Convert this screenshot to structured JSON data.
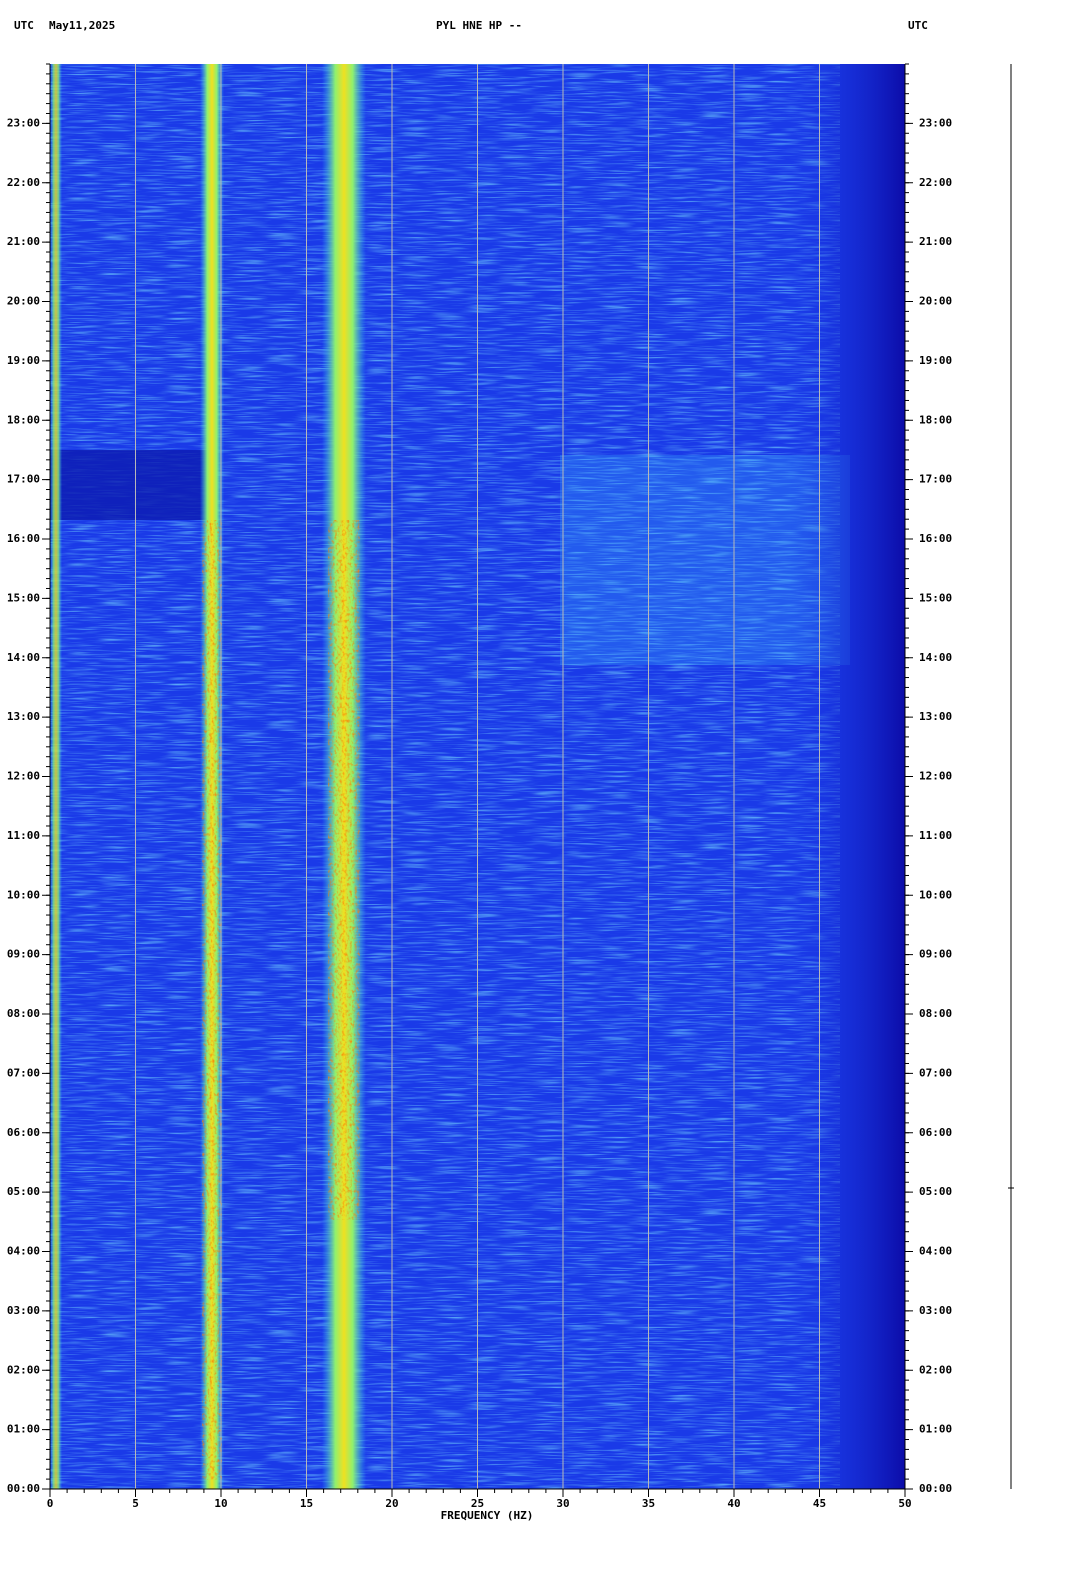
{
  "chart_data": {
    "type": "spectrogram",
    "title": "PYL HNE HP --",
    "y_label": "UTC",
    "date": "May11,2025",
    "xlabel": "FREQUENCY (HZ)",
    "xlim": [
      0,
      50
    ],
    "xticks": [
      0,
      5,
      10,
      15,
      20,
      25,
      30,
      35,
      40,
      45,
      50
    ],
    "ylim": [
      0,
      24
    ],
    "yticks": [
      {
        "value": 0,
        "label": "00:00"
      },
      {
        "value": 1,
        "label": "01:00"
      },
      {
        "value": 2,
        "label": "02:00"
      },
      {
        "value": 3,
        "label": "03:00"
      },
      {
        "value": 4,
        "label": "04:00"
      },
      {
        "value": 5,
        "label": "05:00"
      },
      {
        "value": 6,
        "label": "06:00"
      },
      {
        "value": 7,
        "label": "07:00"
      },
      {
        "value": 8,
        "label": "08:00"
      },
      {
        "value": 9,
        "label": "09:00"
      },
      {
        "value": 10,
        "label": "10:00"
      },
      {
        "value": 11,
        "label": "11:00"
      },
      {
        "value": 12,
        "label": "12:00"
      },
      {
        "value": 13,
        "label": "13:00"
      },
      {
        "value": 14,
        "label": "14:00"
      },
      {
        "value": 15,
        "label": "15:00"
      },
      {
        "value": 16,
        "label": "16:00"
      },
      {
        "value": 17,
        "label": "17:00"
      },
      {
        "value": 18,
        "label": "18:00"
      },
      {
        "value": 19,
        "label": "19:00"
      },
      {
        "value": 20,
        "label": "20:00"
      },
      {
        "value": 21,
        "label": "21:00"
      },
      {
        "value": 22,
        "label": "22:00"
      },
      {
        "value": 23,
        "label": "23:00"
      }
    ],
    "grid": true
  }
}
